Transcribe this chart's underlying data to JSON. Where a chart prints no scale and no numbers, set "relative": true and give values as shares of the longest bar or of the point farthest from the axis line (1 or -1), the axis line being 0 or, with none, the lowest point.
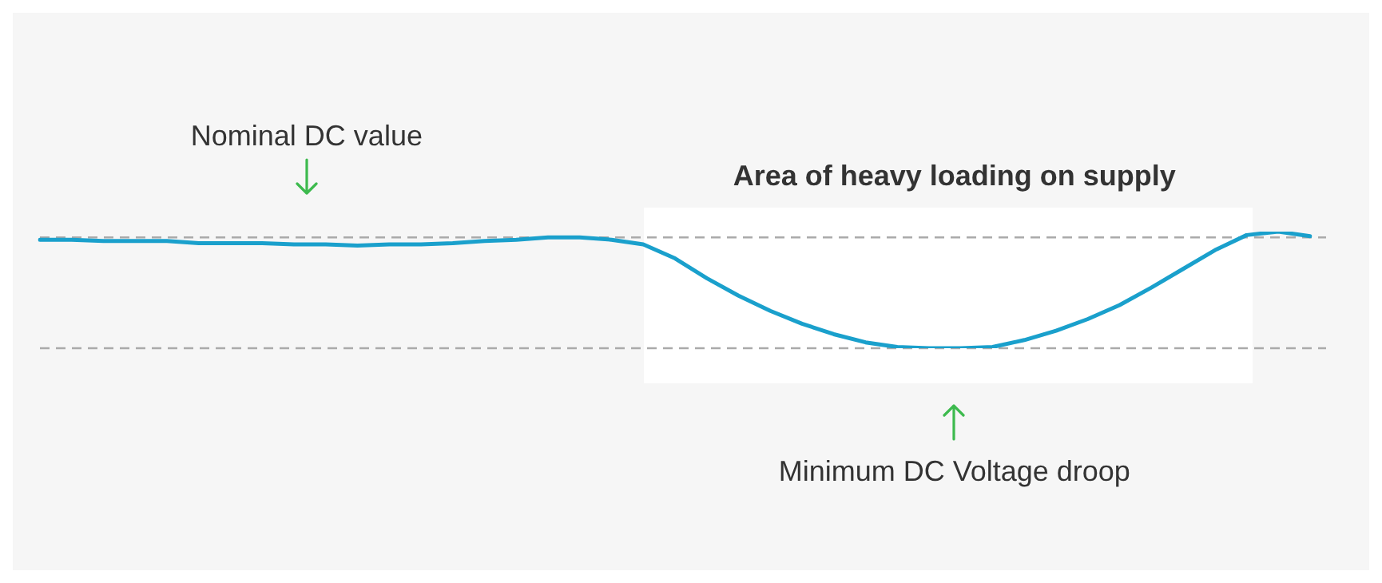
{
  "chart_data": {
    "type": "line",
    "relative": true,
    "categories": [
      null,
      null,
      null,
      null,
      null,
      null,
      null,
      null,
      null,
      null,
      null,
      null,
      null,
      null,
      null,
      null,
      null,
      null,
      null,
      null,
      null,
      null,
      null,
      null,
      null,
      null,
      null,
      null,
      null,
      null,
      null,
      null,
      null,
      null,
      null,
      null,
      null,
      null,
      null,
      null,
      null
    ],
    "series": [
      {
        "color": "#1aa0cc",
        "values": [
          0.93,
          0.93,
          0.92,
          0.92,
          0.92,
          0.9,
          0.9,
          0.9,
          0.89,
          0.89,
          0.88,
          0.89,
          0.89,
          0.9,
          0.92,
          0.93,
          0.95,
          0.95,
          0.93,
          0.89,
          0.77,
          0.6,
          0.45,
          0.32,
          0.21,
          0.12,
          0.05,
          0.01,
          0,
          0,
          0.01,
          0.07,
          0.15,
          0.25,
          0.37,
          0.52,
          0.68,
          0.84,
          0.97,
          1,
          0.96
        ]
      }
    ],
    "ref_lines": [
      {
        "axis": "y",
        "value": 0.95,
        "color": "#aaaaaa",
        "line_style": "dashed"
      },
      {
        "axis": "y",
        "value": 0,
        "color": "#aaaaaa",
        "line_style": "dashed"
      }
    ],
    "annotations": [
      "Nominal DC value",
      "Minimum DC Voltage droop",
      "Area of heavy loading on supply"
    ],
    "marker": "none",
    "line_style": "solid",
    "legend": false
  }
}
